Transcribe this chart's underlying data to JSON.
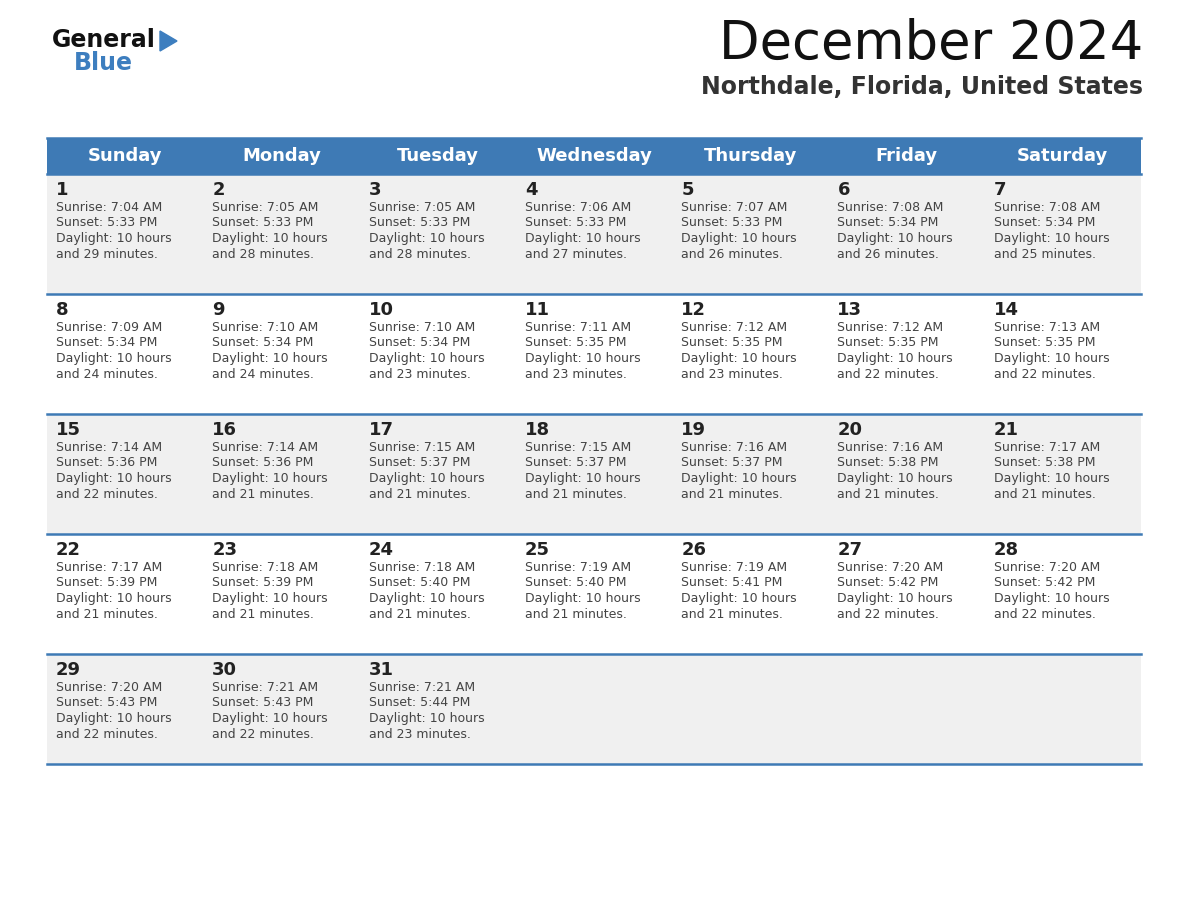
{
  "title": "December 2024",
  "subtitle": "Northdale, Florida, United States",
  "days_of_week": [
    "Sunday",
    "Monday",
    "Tuesday",
    "Wednesday",
    "Thursday",
    "Friday",
    "Saturday"
  ],
  "header_bg": "#3e7ab5",
  "header_text": "#ffffff",
  "row_bg_odd": "#f0f0f0",
  "row_bg_even": "#ffffff",
  "border_color": "#3e7ab5",
  "title_color": "#111111",
  "subtitle_color": "#333333",
  "day_num_color": "#222222",
  "cell_text_color": "#444444",
  "logo_general_color": "#111111",
  "logo_blue_color": "#3d7ebf",
  "logo_triangle_color": "#3d7ebf",
  "calendar_data": [
    [
      {
        "day": 1,
        "sunrise": "7:04 AM",
        "sunset": "5:33 PM",
        "daylight": "10 hours and 29 minutes."
      },
      {
        "day": 2,
        "sunrise": "7:05 AM",
        "sunset": "5:33 PM",
        "daylight": "10 hours and 28 minutes."
      },
      {
        "day": 3,
        "sunrise": "7:05 AM",
        "sunset": "5:33 PM",
        "daylight": "10 hours and 28 minutes."
      },
      {
        "day": 4,
        "sunrise": "7:06 AM",
        "sunset": "5:33 PM",
        "daylight": "10 hours and 27 minutes."
      },
      {
        "day": 5,
        "sunrise": "7:07 AM",
        "sunset": "5:33 PM",
        "daylight": "10 hours and 26 minutes."
      },
      {
        "day": 6,
        "sunrise": "7:08 AM",
        "sunset": "5:34 PM",
        "daylight": "10 hours and 26 minutes."
      },
      {
        "day": 7,
        "sunrise": "7:08 AM",
        "sunset": "5:34 PM",
        "daylight": "10 hours and 25 minutes."
      }
    ],
    [
      {
        "day": 8,
        "sunrise": "7:09 AM",
        "sunset": "5:34 PM",
        "daylight": "10 hours and 24 minutes."
      },
      {
        "day": 9,
        "sunrise": "7:10 AM",
        "sunset": "5:34 PM",
        "daylight": "10 hours and 24 minutes."
      },
      {
        "day": 10,
        "sunrise": "7:10 AM",
        "sunset": "5:34 PM",
        "daylight": "10 hours and 23 minutes."
      },
      {
        "day": 11,
        "sunrise": "7:11 AM",
        "sunset": "5:35 PM",
        "daylight": "10 hours and 23 minutes."
      },
      {
        "day": 12,
        "sunrise": "7:12 AM",
        "sunset": "5:35 PM",
        "daylight": "10 hours and 23 minutes."
      },
      {
        "day": 13,
        "sunrise": "7:12 AM",
        "sunset": "5:35 PM",
        "daylight": "10 hours and 22 minutes."
      },
      {
        "day": 14,
        "sunrise": "7:13 AM",
        "sunset": "5:35 PM",
        "daylight": "10 hours and 22 minutes."
      }
    ],
    [
      {
        "day": 15,
        "sunrise": "7:14 AM",
        "sunset": "5:36 PM",
        "daylight": "10 hours and 22 minutes."
      },
      {
        "day": 16,
        "sunrise": "7:14 AM",
        "sunset": "5:36 PM",
        "daylight": "10 hours and 21 minutes."
      },
      {
        "day": 17,
        "sunrise": "7:15 AM",
        "sunset": "5:37 PM",
        "daylight": "10 hours and 21 minutes."
      },
      {
        "day": 18,
        "sunrise": "7:15 AM",
        "sunset": "5:37 PM",
        "daylight": "10 hours and 21 minutes."
      },
      {
        "day": 19,
        "sunrise": "7:16 AM",
        "sunset": "5:37 PM",
        "daylight": "10 hours and 21 minutes."
      },
      {
        "day": 20,
        "sunrise": "7:16 AM",
        "sunset": "5:38 PM",
        "daylight": "10 hours and 21 minutes."
      },
      {
        "day": 21,
        "sunrise": "7:17 AM",
        "sunset": "5:38 PM",
        "daylight": "10 hours and 21 minutes."
      }
    ],
    [
      {
        "day": 22,
        "sunrise": "7:17 AM",
        "sunset": "5:39 PM",
        "daylight": "10 hours and 21 minutes."
      },
      {
        "day": 23,
        "sunrise": "7:18 AM",
        "sunset": "5:39 PM",
        "daylight": "10 hours and 21 minutes."
      },
      {
        "day": 24,
        "sunrise": "7:18 AM",
        "sunset": "5:40 PM",
        "daylight": "10 hours and 21 minutes."
      },
      {
        "day": 25,
        "sunrise": "7:19 AM",
        "sunset": "5:40 PM",
        "daylight": "10 hours and 21 minutes."
      },
      {
        "day": 26,
        "sunrise": "7:19 AM",
        "sunset": "5:41 PM",
        "daylight": "10 hours and 21 minutes."
      },
      {
        "day": 27,
        "sunrise": "7:20 AM",
        "sunset": "5:42 PM",
        "daylight": "10 hours and 22 minutes."
      },
      {
        "day": 28,
        "sunrise": "7:20 AM",
        "sunset": "5:42 PM",
        "daylight": "10 hours and 22 minutes."
      }
    ],
    [
      {
        "day": 29,
        "sunrise": "7:20 AM",
        "sunset": "5:43 PM",
        "daylight": "10 hours and 22 minutes."
      },
      {
        "day": 30,
        "sunrise": "7:21 AM",
        "sunset": "5:43 PM",
        "daylight": "10 hours and 22 minutes."
      },
      {
        "day": 31,
        "sunrise": "7:21 AM",
        "sunset": "5:44 PM",
        "daylight": "10 hours and 23 minutes."
      },
      null,
      null,
      null,
      null
    ]
  ]
}
